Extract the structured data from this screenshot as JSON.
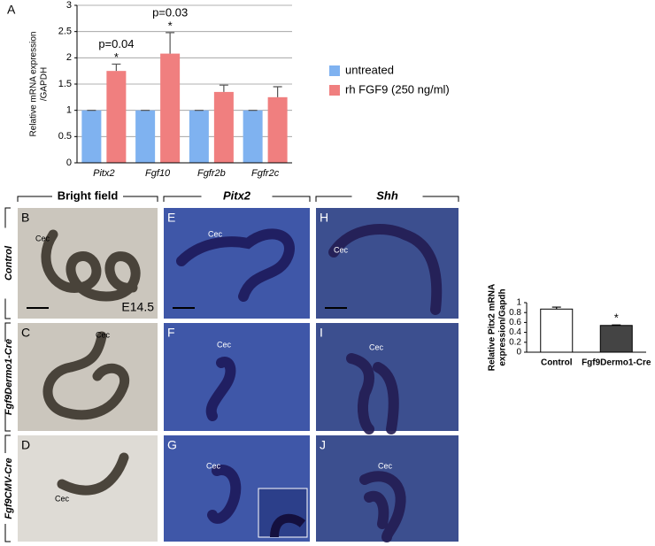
{
  "chart_data": [
    {
      "type": "bar",
      "panel": "A",
      "ylabel": [
        "Relative mRNA expression",
        "/GAPDH"
      ],
      "categories": [
        "Pitx2",
        "Fgf10",
        "Fgfr2b",
        "Fgfr2c"
      ],
      "series": [
        {
          "name": "untreated",
          "color": "#7fb2f0",
          "values": [
            1,
            1,
            1,
            1
          ],
          "errors": [
            0,
            0,
            0,
            0
          ]
        },
        {
          "name": "rh FGF9 (250 ng/ml)",
          "color": "#f07f7f",
          "values": [
            1.75,
            2.08,
            1.35,
            1.25
          ],
          "errors": [
            0.13,
            0.4,
            0.13,
            0.2
          ]
        }
      ],
      "markers": [
        "*",
        "*",
        null,
        null
      ],
      "annotations": [
        {
          "category": "Pitx2",
          "label": "p=0.04"
        },
        {
          "category": "Fgf10",
          "label": "p=0.03"
        }
      ],
      "ylim": [
        0,
        3
      ],
      "yticks": [
        0,
        0.5,
        1,
        1.5,
        2,
        2.5,
        3
      ],
      "grid": true,
      "legend": "right"
    },
    {
      "type": "bar",
      "ylabel": [
        "Relative Pitx2 mRNA",
        "expression/Gapdh"
      ],
      "categories": [
        "Control",
        "Fgf9Dermo1-Cre"
      ],
      "series": [
        {
          "colors": [
            "#ffffff",
            "#444444"
          ],
          "values": [
            0.87,
            0.54
          ],
          "errors": [
            0.04,
            0.01
          ]
        }
      ],
      "markers": [
        null,
        "*"
      ],
      "ylim": [
        0,
        1
      ],
      "yticks": [
        0,
        0.2,
        0.4,
        0.6,
        0.8,
        1
      ],
      "grid": false
    }
  ],
  "figure": {
    "columns": [
      "Bright field",
      "Pitx2",
      "Shh"
    ],
    "rows": [
      "Control",
      "Fgf9Dermo1-Cre",
      "Fgf9CMV-Cre"
    ],
    "panels": [
      {
        "letter": "B",
        "label": "Cec",
        "note": "E14.5"
      },
      {
        "letter": "C",
        "label": "Cec"
      },
      {
        "letter": "D",
        "label": "Cec"
      },
      {
        "letter": "E",
        "label": "Cec"
      },
      {
        "letter": "F",
        "label": "Cec"
      },
      {
        "letter": "G",
        "label": "Cec"
      },
      {
        "letter": "H",
        "label": "Cec"
      },
      {
        "letter": "I",
        "label": "Cec"
      },
      {
        "letter": "J",
        "label": "Cec"
      }
    ]
  }
}
